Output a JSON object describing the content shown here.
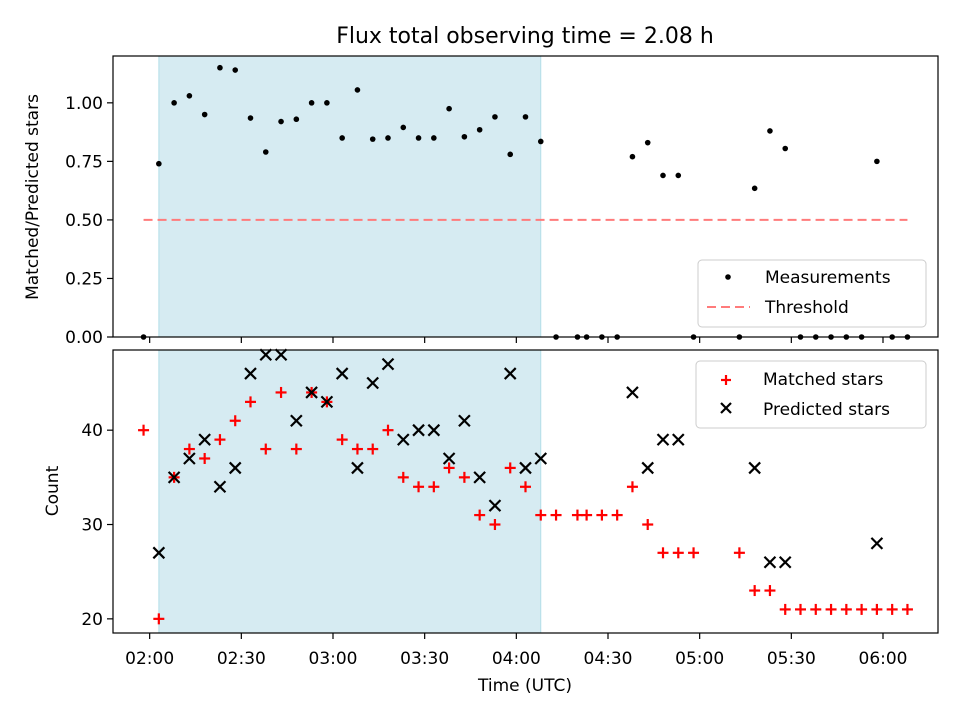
{
  "chart_data": [
    {
      "type": "scatter",
      "title": "Flux total observing time = 2.08 h",
      "xlabel": "",
      "ylabel": "Matched/Predicted stars",
      "ylim": [
        0,
        1.2
      ],
      "yticks": [
        "0.00",
        "0.25",
        "0.50",
        "0.75",
        "1.00"
      ],
      "grid": false,
      "legend_position": "bottom-right",
      "shaded_interval": [
        "02:03",
        "04:08"
      ],
      "threshold": {
        "name": "Threshold",
        "value": 0.5,
        "x_range": [
          "01:58",
          "06:08"
        ],
        "color": "#ff7b7b"
      },
      "series": [
        {
          "name": "Measurements",
          "color": "#000000",
          "x": [
            "01:58",
            "02:03",
            "02:08",
            "02:13",
            "02:18",
            "02:23",
            "02:28",
            "02:33",
            "02:38",
            "02:43",
            "02:48",
            "02:53",
            "02:58",
            "03:03",
            "03:08",
            "03:13",
            "03:18",
            "03:23",
            "03:28",
            "03:33",
            "03:38",
            "03:43",
            "03:48",
            "03:53",
            "03:58",
            "04:03",
            "04:08",
            "04:13",
            "04:20",
            "04:23",
            "04:28",
            "04:33",
            "04:38",
            "04:43",
            "04:48",
            "04:53",
            "04:58",
            "05:13",
            "05:18",
            "05:23",
            "05:28",
            "05:33",
            "05:38",
            "05:43",
            "05:48",
            "05:53",
            "05:58",
            "06:03",
            "06:08"
          ],
          "y": [
            0.0,
            0.74,
            1.0,
            1.03,
            0.95,
            1.15,
            1.14,
            0.935,
            0.79,
            0.92,
            0.93,
            1.0,
            1.0,
            0.85,
            1.055,
            0.845,
            0.85,
            0.895,
            0.85,
            0.85,
            0.975,
            0.855,
            0.885,
            0.94,
            0.78,
            0.94,
            0.835,
            0.0,
            0.0,
            0.0,
            0.0,
            0.0,
            0.77,
            0.83,
            0.69,
            0.69,
            0.0,
            0.0,
            0.635,
            0.88,
            0.805,
            0.0,
            0.0,
            0.0,
            0.0,
            0.0,
            0.75,
            0.0,
            0.0
          ]
        }
      ]
    },
    {
      "type": "scatter",
      "title": "",
      "xlabel": "Time (UTC)",
      "ylabel": "Count",
      "ylim": [
        18.5,
        48.5
      ],
      "yticks": [
        "20",
        "30",
        "40"
      ],
      "xlim": [
        "01:48",
        "06:18"
      ],
      "xticks": [
        "02:00",
        "02:30",
        "03:00",
        "03:30",
        "04:00",
        "04:30",
        "05:00",
        "05:30",
        "06:00"
      ],
      "grid": false,
      "legend_position": "top-right",
      "shaded_interval": [
        "02:03",
        "04:08"
      ],
      "series": [
        {
          "name": "Matched stars",
          "marker": "plus",
          "color": "#ff0000",
          "x": [
            "01:58",
            "02:03",
            "02:08",
            "02:13",
            "02:18",
            "02:23",
            "02:28",
            "02:33",
            "02:38",
            "02:43",
            "02:48",
            "02:53",
            "02:58",
            "03:03",
            "03:08",
            "03:13",
            "03:18",
            "03:23",
            "03:28",
            "03:33",
            "03:38",
            "03:43",
            "03:48",
            "03:53",
            "03:58",
            "04:03",
            "04:08",
            "04:13",
            "04:20",
            "04:23",
            "04:28",
            "04:33",
            "04:38",
            "04:43",
            "04:48",
            "04:53",
            "04:58",
            "05:13",
            "05:18",
            "05:23",
            "05:28",
            "05:33",
            "05:38",
            "05:43",
            "05:48",
            "05:53",
            "05:58",
            "06:03",
            "06:08"
          ],
          "y": [
            40,
            20,
            35,
            38,
            37,
            39,
            41,
            43,
            38,
            44,
            38,
            44,
            43,
            39,
            38,
            38,
            40,
            35,
            34,
            34,
            36,
            35,
            31,
            30,
            36,
            34,
            31,
            31,
            31,
            31,
            31,
            31,
            34,
            30,
            27,
            27,
            27,
            27,
            23,
            23,
            21,
            21,
            21,
            21,
            21,
            21,
            21,
            21,
            21
          ]
        },
        {
          "name": "Predicted stars",
          "marker": "x",
          "color": "#000000",
          "x": [
            "02:03",
            "02:08",
            "02:13",
            "02:18",
            "02:23",
            "02:28",
            "02:33",
            "02:38",
            "02:43",
            "02:48",
            "02:53",
            "02:58",
            "03:03",
            "03:08",
            "03:13",
            "03:18",
            "03:23",
            "03:28",
            "03:33",
            "03:38",
            "03:43",
            "03:48",
            "03:53",
            "03:58",
            "04:03",
            "04:08",
            "04:38",
            "04:43",
            "04:48",
            "04:53",
            "05:18",
            "05:23",
            "05:28",
            "05:58"
          ],
          "y": [
            27,
            35,
            37,
            39,
            34,
            36,
            46,
            48,
            48,
            41,
            44,
            43,
            46,
            36,
            45,
            47,
            39,
            40,
            40,
            37,
            41,
            35,
            32,
            46,
            36,
            37,
            44,
            36,
            39,
            39,
            36,
            26,
            26,
            28
          ]
        }
      ]
    }
  ]
}
